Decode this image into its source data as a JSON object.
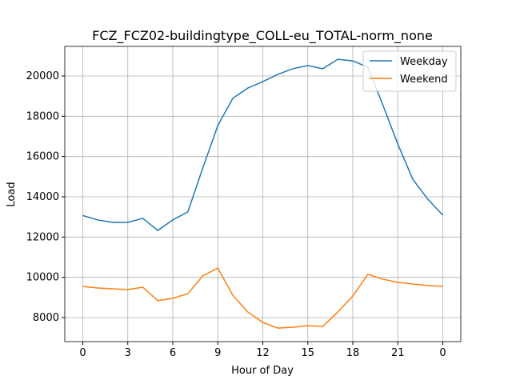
{
  "chart_data": {
    "type": "line",
    "title": "FCZ_FCZ02-buildingtype_COLL-eu_TOTAL-norm_none",
    "x_label": "Hour of Day",
    "y_label": "Load",
    "x": [
      0,
      1,
      2,
      3,
      4,
      5,
      6,
      7,
      8,
      9,
      10,
      11,
      12,
      13,
      14,
      15,
      16,
      17,
      18,
      19,
      20,
      21,
      22,
      23,
      24
    ],
    "series": [
      {
        "name": "Weekday",
        "color": "#1f77b4",
        "values": [
          13070,
          12850,
          12730,
          12730,
          12930,
          12330,
          12850,
          13250,
          15430,
          17540,
          18890,
          19400,
          19720,
          20080,
          20360,
          20520,
          20360,
          20830,
          20750,
          20440,
          18570,
          16620,
          14870,
          13880,
          13090
        ]
      },
      {
        "name": "Weekend",
        "color": "#ff7f0e",
        "values": [
          9550,
          9470,
          9430,
          9390,
          9510,
          8840,
          8960,
          9190,
          10070,
          10460,
          9110,
          8280,
          7760,
          7480,
          7520,
          7600,
          7560,
          8280,
          9070,
          10150,
          9910,
          9750,
          9670,
          9590,
          9550
        ]
      }
    ],
    "xlim": [
      -1.2,
      25.2
    ],
    "xticks": [
      0,
      3,
      6,
      9,
      12,
      15,
      18,
      21,
      {
        "value": 24,
        "label": "0"
      }
    ],
    "ylim": [
      6808,
      21470
    ],
    "yticks": [
      8000,
      10000,
      12000,
      14000,
      16000,
      18000,
      20000
    ],
    "grid": true,
    "legend": "upper-right"
  }
}
